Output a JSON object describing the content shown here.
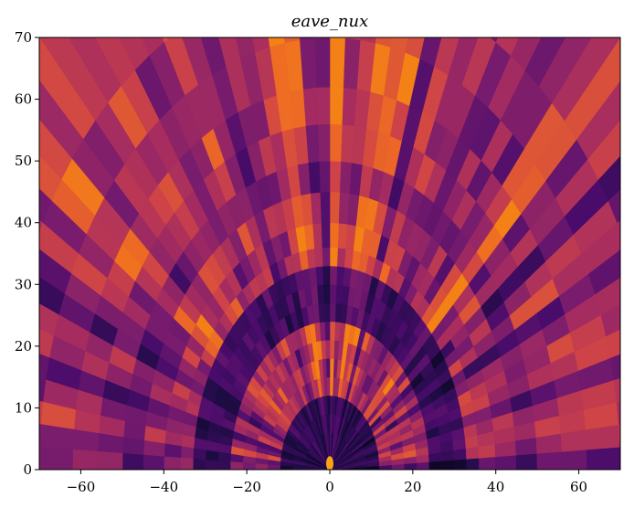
{
  "chart_data": {
    "type": "heatmap",
    "title": "eave_nux",
    "xlabel": "",
    "ylabel": "",
    "xlim": [
      -70,
      70
    ],
    "ylim": [
      0,
      70
    ],
    "x_ticks": [
      -60,
      -40,
      -20,
      0,
      20,
      40,
      60
    ],
    "y_ticks": [
      0,
      10,
      20,
      30,
      40,
      50,
      60,
      70
    ],
    "colormap": "inferno",
    "colors": [
      "#000004",
      "#1b0c41",
      "#4a0c6b",
      "#781c6d",
      "#a52c60",
      "#cf4446",
      "#ed6925",
      "#fb9b06",
      "#f7d13d",
      "#fcffa4"
    ],
    "polar_grid": {
      "angle_range_deg": [
        0,
        180
      ],
      "rays": 60,
      "radii": [
        0,
        6,
        9,
        12,
        15,
        18,
        21,
        24,
        27,
        30,
        33,
        36,
        40,
        45,
        50,
        56,
        62,
        70,
        80,
        100
      ]
    },
    "grid": false,
    "legend": "none"
  }
}
